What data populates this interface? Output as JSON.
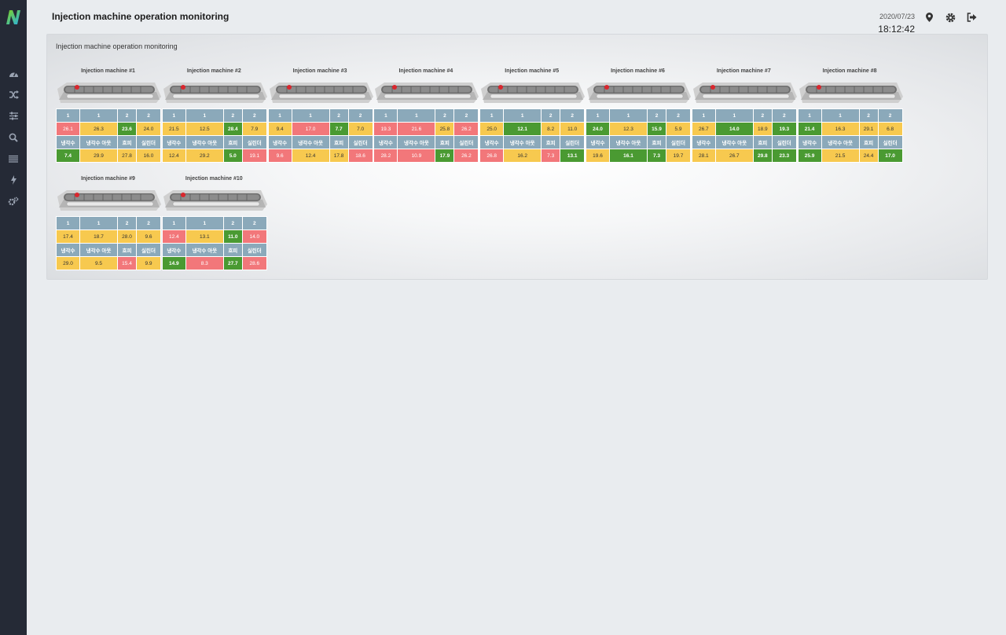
{
  "app": {
    "title": "Injection machine operation monitoring",
    "date": "2020/07/23",
    "time": "18:12:42",
    "logo_text": "N"
  },
  "sidebar": {
    "items": [
      {
        "icon": "dashboard-icon"
      },
      {
        "icon": "shuffle-icon"
      },
      {
        "icon": "sliders-icon"
      },
      {
        "icon": "search-icon"
      },
      {
        "icon": "list-icon"
      },
      {
        "icon": "lightning-icon"
      },
      {
        "icon": "gears-icon"
      }
    ]
  },
  "header_icons": [
    "location-pin-icon",
    "gear-icon",
    "logout-icon"
  ],
  "panel": {
    "title": "Injection machine operation monitoring"
  },
  "colors": {
    "red": "#f2777a",
    "yellow": "#f7c94f",
    "green": "#4a9a32",
    "header": "#8ba9ba"
  },
  "table_headers": {
    "row1": [
      "1",
      "1",
      "2",
      "2"
    ],
    "row3": [
      "냉각수",
      "냉각수 아웃",
      "흐피",
      "실린더"
    ]
  },
  "machines": [
    {
      "name": "Injection machine #1",
      "row2": [
        {
          "v": "26.1",
          "s": "red"
        },
        {
          "v": "26.3",
          "s": "yel"
        },
        {
          "v": "23.6",
          "s": "grn"
        },
        {
          "v": "24.0",
          "s": "yel"
        }
      ],
      "row4": [
        {
          "v": "7.4",
          "s": "grn"
        },
        {
          "v": "29.9",
          "s": "yel"
        },
        {
          "v": "27.8",
          "s": "yel"
        },
        {
          "v": "16.0",
          "s": "yel"
        }
      ]
    },
    {
      "name": "Injection machine #2",
      "row2": [
        {
          "v": "21.5",
          "s": "yel"
        },
        {
          "v": "12.5",
          "s": "yel"
        },
        {
          "v": "28.4",
          "s": "grn"
        },
        {
          "v": "7.9",
          "s": "yel"
        }
      ],
      "row4": [
        {
          "v": "12.4",
          "s": "yel"
        },
        {
          "v": "29.2",
          "s": "yel"
        },
        {
          "v": "5.0",
          "s": "grn"
        },
        {
          "v": "19.1",
          "s": "red"
        }
      ]
    },
    {
      "name": "Injection machine #3",
      "row2": [
        {
          "v": "9.4",
          "s": "yel"
        },
        {
          "v": "17.0",
          "s": "red"
        },
        {
          "v": "7.7",
          "s": "grn"
        },
        {
          "v": "7.0",
          "s": "yel"
        }
      ],
      "row4": [
        {
          "v": "9.6",
          "s": "red"
        },
        {
          "v": "12.4",
          "s": "yel"
        },
        {
          "v": "17.8",
          "s": "yel"
        },
        {
          "v": "18.6",
          "s": "red"
        }
      ]
    },
    {
      "name": "Injection machine #4",
      "row2": [
        {
          "v": "19.3",
          "s": "red"
        },
        {
          "v": "21.6",
          "s": "red"
        },
        {
          "v": "25.8",
          "s": "yel"
        },
        {
          "v": "26.2",
          "s": "red"
        }
      ],
      "row4": [
        {
          "v": "28.2",
          "s": "red"
        },
        {
          "v": "10.9",
          "s": "red"
        },
        {
          "v": "17.9",
          "s": "grn"
        },
        {
          "v": "26.2",
          "s": "red"
        }
      ]
    },
    {
      "name": "Injection machine #5",
      "row2": [
        {
          "v": "25.0",
          "s": "yel"
        },
        {
          "v": "12.1",
          "s": "grn"
        },
        {
          "v": "8.2",
          "s": "yel"
        },
        {
          "v": "11.0",
          "s": "yel"
        }
      ],
      "row4": [
        {
          "v": "26.8",
          "s": "red"
        },
        {
          "v": "16.2",
          "s": "yel"
        },
        {
          "v": "7.3",
          "s": "red"
        },
        {
          "v": "13.1",
          "s": "grn"
        }
      ]
    },
    {
      "name": "Injection machine #6",
      "row2": [
        {
          "v": "24.0",
          "s": "grn"
        },
        {
          "v": "12.3",
          "s": "yel"
        },
        {
          "v": "15.9",
          "s": "grn"
        },
        {
          "v": "5.9",
          "s": "yel"
        }
      ],
      "row4": [
        {
          "v": "19.6",
          "s": "yel"
        },
        {
          "v": "16.1",
          "s": "grn"
        },
        {
          "v": "7.3",
          "s": "grn"
        },
        {
          "v": "19.7",
          "s": "yel"
        }
      ]
    },
    {
      "name": "Injection machine #7",
      "row2": [
        {
          "v": "26.7",
          "s": "yel"
        },
        {
          "v": "14.0",
          "s": "grn"
        },
        {
          "v": "18.9",
          "s": "yel"
        },
        {
          "v": "19.3",
          "s": "grn"
        }
      ],
      "row4": [
        {
          "v": "28.1",
          "s": "yel"
        },
        {
          "v": "26.7",
          "s": "yel"
        },
        {
          "v": "29.8",
          "s": "grn"
        },
        {
          "v": "23.3",
          "s": "grn"
        }
      ]
    },
    {
      "name": "Injection machine #8",
      "row2": [
        {
          "v": "21.4",
          "s": "grn"
        },
        {
          "v": "16.3",
          "s": "yel"
        },
        {
          "v": "29.1",
          "s": "yel"
        },
        {
          "v": "6.8",
          "s": "yel"
        }
      ],
      "row4": [
        {
          "v": "25.9",
          "s": "grn"
        },
        {
          "v": "21.5",
          "s": "yel"
        },
        {
          "v": "24.4",
          "s": "yel"
        },
        {
          "v": "17.0",
          "s": "grn"
        }
      ]
    },
    {
      "name": "Injection machine #9",
      "row2": [
        {
          "v": "17.4",
          "s": "yel"
        },
        {
          "v": "18.7",
          "s": "yel"
        },
        {
          "v": "28.0",
          "s": "yel"
        },
        {
          "v": "9.6",
          "s": "yel"
        }
      ],
      "row4": [
        {
          "v": "29.0",
          "s": "yel"
        },
        {
          "v": "9.5",
          "s": "yel"
        },
        {
          "v": "15.4",
          "s": "red"
        },
        {
          "v": "9.9",
          "s": "yel"
        }
      ]
    },
    {
      "name": "Injection machine #10",
      "row2": [
        {
          "v": "12.4",
          "s": "red"
        },
        {
          "v": "13.1",
          "s": "yel"
        },
        {
          "v": "11.0",
          "s": "grn"
        },
        {
          "v": "14.0",
          "s": "red"
        }
      ],
      "row4": [
        {
          "v": "14.9",
          "s": "grn"
        },
        {
          "v": "8.3",
          "s": "red"
        },
        {
          "v": "27.7",
          "s": "grn"
        },
        {
          "v": "28.6",
          "s": "red"
        }
      ]
    }
  ]
}
